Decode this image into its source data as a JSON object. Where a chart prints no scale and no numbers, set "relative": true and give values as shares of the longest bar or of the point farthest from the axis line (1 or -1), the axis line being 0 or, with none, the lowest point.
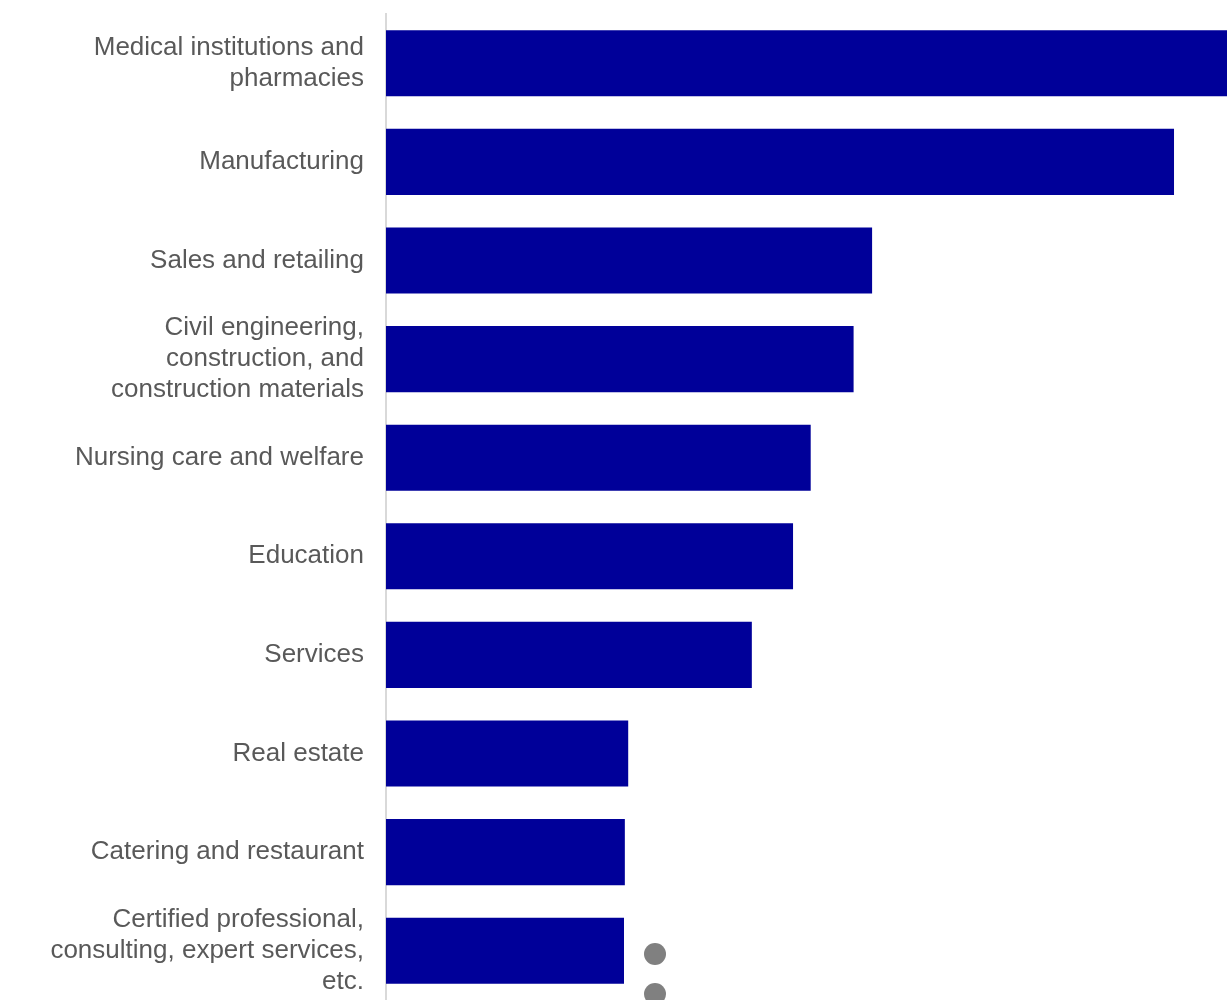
{
  "chart_data": {
    "type": "bar",
    "orientation": "horizontal",
    "relative": true,
    "legend": false,
    "categories": [
      "Medical institutions and pharmacies",
      "Manufacturing",
      "Sales and retailing",
      "Civil engineering, construction, and construction materials",
      "Nursing care and welfare",
      "Education",
      "Services",
      "Real estate",
      "Catering and restaurant",
      "Certified professional, consulting, expert services, etc."
    ],
    "values": [
      1,
      0.937,
      0.578,
      0.556,
      0.505,
      0.484,
      0.435,
      0.288,
      0.284,
      0.283
    ],
    "color": "#000099"
  }
}
